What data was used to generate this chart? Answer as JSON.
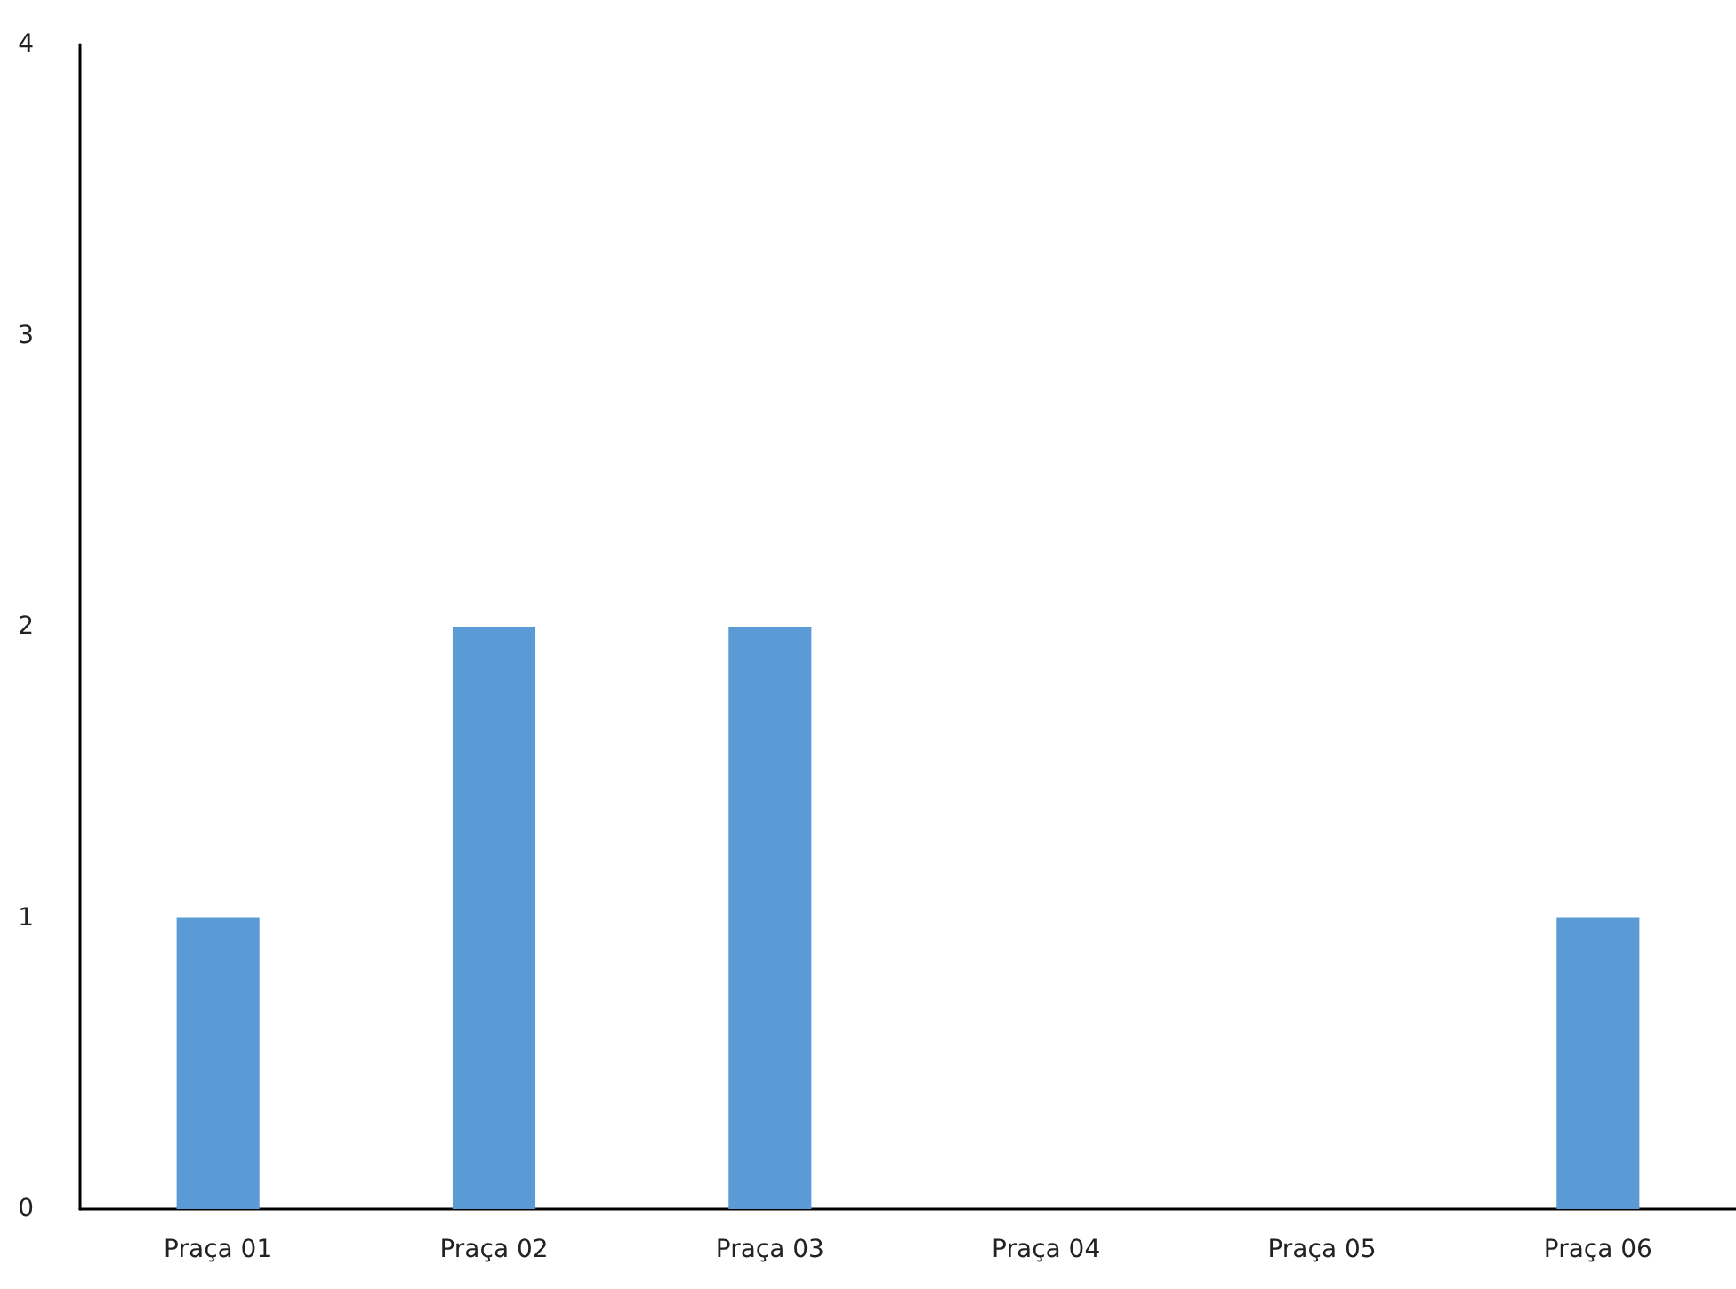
{
  "chart_data": {
    "type": "bar",
    "categories": [
      "Praça 01",
      "Praça 02",
      "Praça 03",
      "Praça 04",
      "Praça 05",
      "Praça 06"
    ],
    "values": [
      1,
      2,
      2,
      0,
      0,
      1
    ],
    "color": "#5b9bd5",
    "ylim": [
      0,
      4
    ],
    "yticks": [
      0,
      1,
      2,
      3,
      4
    ],
    "grid": false
  }
}
